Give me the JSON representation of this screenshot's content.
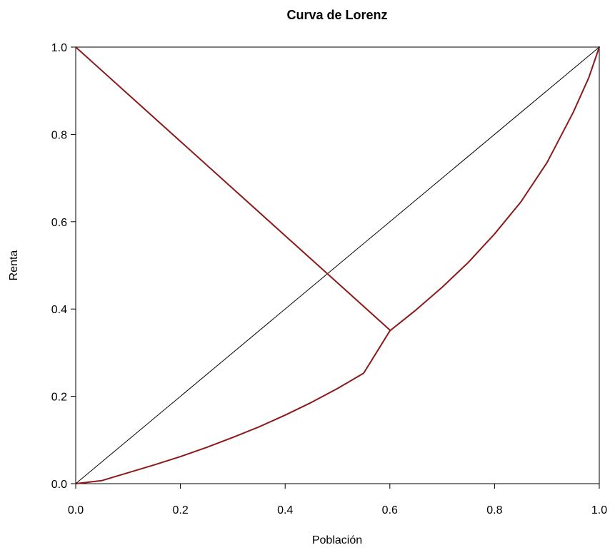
{
  "chart_data": {
    "type": "line",
    "title": "Curva de Lorenz",
    "xlabel": "Población",
    "ylabel": "Renta",
    "xlim": [
      0,
      1
    ],
    "ylim": [
      0,
      1
    ],
    "x_ticks": [
      "0.0",
      "0.2",
      "0.4",
      "0.6",
      "0.8",
      "1.0"
    ],
    "y_ticks": [
      "0.0",
      "0.2",
      "0.4",
      "0.6",
      "0.8",
      "1.0"
    ],
    "grid": false,
    "legend": "none",
    "colors": {
      "curve": "#8b1a1a",
      "equality": "#000000",
      "frame": "#000000"
    },
    "series": [
      {
        "role": "lorenz-curve",
        "x": [
          0,
          0.05,
          0.1,
          0.15,
          0.2,
          0.25,
          0.3,
          0.35,
          0.4,
          0.45,
          0.5,
          0.55,
          0.6,
          0.65,
          0.7,
          0.75,
          0.8,
          0.85,
          0.9,
          0.95,
          0.98,
          1.0
        ],
        "y": [
          0,
          0.007,
          0.025,
          0.043,
          0.062,
          0.083,
          0.106,
          0.13,
          0.157,
          0.186,
          0.218,
          0.253,
          0.35,
          0.398,
          0.45,
          0.507,
          0.572,
          0.645,
          0.735,
          0.85,
          0.93,
          1.0
        ]
      },
      {
        "role": "equality-line",
        "x": [
          0,
          1
        ],
        "y": [
          0,
          1
        ]
      },
      {
        "role": "perpendicular-line",
        "x": [
          0,
          0.6
        ],
        "y": [
          1,
          0.352
        ]
      }
    ]
  }
}
